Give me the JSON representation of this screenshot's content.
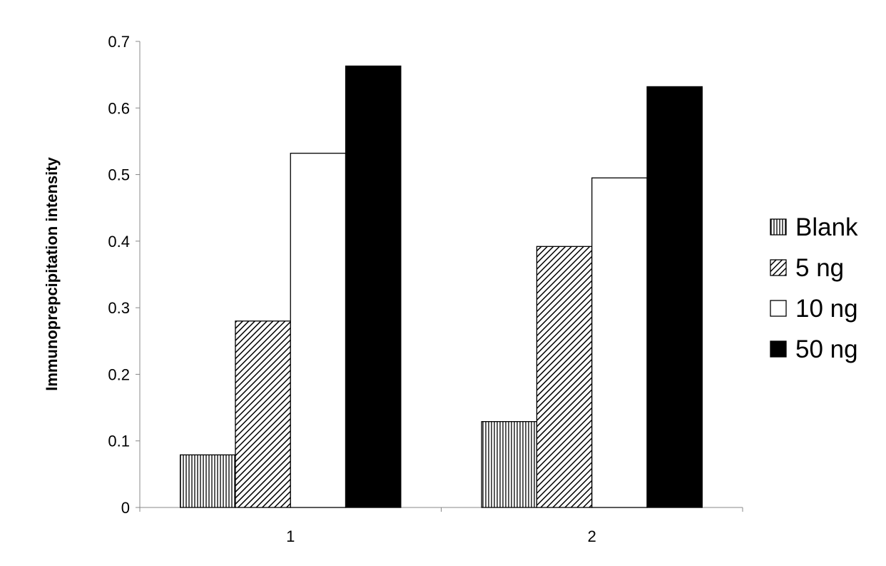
{
  "chart_data": {
    "type": "bar",
    "title": "",
    "xlabel": "",
    "ylabel": "Immunoprepcipitation intensity",
    "ylim": [
      0,
      0.7
    ],
    "yticks": [
      "0",
      "0.1",
      "0.2",
      "0.3",
      "0.4",
      "0.5",
      "0.6",
      "0.7"
    ],
    "categories": [
      "1",
      "2"
    ],
    "grid": false,
    "legend_placement": "right",
    "series": [
      {
        "name": "Blank",
        "values": [
          0.079,
          0.129
        ],
        "fill": "vertical-lines"
      },
      {
        "name": "5 ng",
        "values": [
          0.28,
          0.392
        ],
        "fill": "diagonal-hatch"
      },
      {
        "name": "10 ng",
        "values": [
          0.532,
          0.495
        ],
        "fill": "#ffffff"
      },
      {
        "name": "50 ng",
        "values": [
          0.663,
          0.632
        ],
        "fill": "#000000"
      }
    ]
  }
}
